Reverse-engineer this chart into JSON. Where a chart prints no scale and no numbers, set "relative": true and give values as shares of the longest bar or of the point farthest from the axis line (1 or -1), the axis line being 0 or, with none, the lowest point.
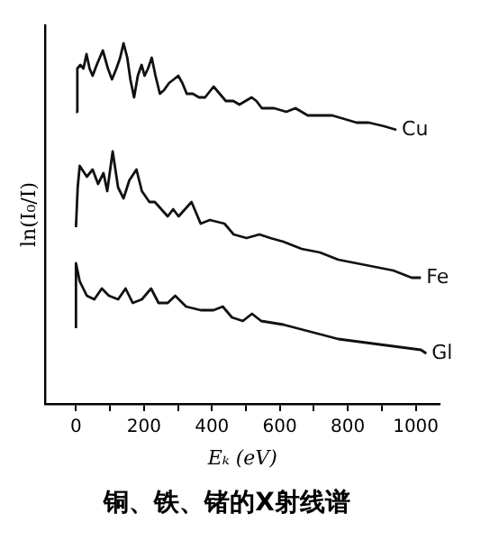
{
  "chart_data": {
    "type": "line",
    "title": "铜、铁、锗的X射线谱",
    "xlabel": "Eₖ (eV)",
    "ylabel": "ln(I₀/I)",
    "relative": true,
    "legend": false,
    "grid": false,
    "marker": "none",
    "xlim": [
      -90,
      1070
    ],
    "xticks": [
      0,
      {
        "value": 100,
        "label": null
      },
      200,
      {
        "value": 300,
        "label": null
      },
      400,
      {
        "value": 500,
        "label": null
      },
      600,
      {
        "value": 700,
        "label": null
      },
      800,
      {
        "value": 900,
        "label": null
      },
      1000
    ],
    "series": [
      {
        "name": "Cu",
        "color": "#111111",
        "x": [
          0,
          4,
          13,
          22,
          31,
          40,
          49,
          61,
          79,
          94,
          106,
          119,
          130,
          140,
          151,
          160,
          171,
          182,
          193,
          202,
          212,
          223,
          234,
          247,
          259,
          274,
          288,
          301,
          313,
          326,
          344,
          362,
          380,
          405,
          423,
          441,
          463,
          481,
          499,
          517,
          531,
          547,
          583,
          619,
          646,
          682,
          718,
          754,
          790,
          826,
          862,
          907,
          943
        ],
        "values": [
          0.81,
          0.93,
          0.94,
          0.93,
          0.97,
          0.93,
          0.91,
          0.94,
          0.98,
          0.93,
          0.9,
          0.93,
          0.96,
          1.0,
          0.96,
          0.9,
          0.85,
          0.91,
          0.94,
          0.91,
          0.93,
          0.96,
          0.91,
          0.86,
          0.87,
          0.89,
          0.9,
          0.91,
          0.89,
          0.86,
          0.86,
          0.85,
          0.85,
          0.88,
          0.86,
          0.84,
          0.84,
          0.83,
          0.84,
          0.85,
          0.84,
          0.82,
          0.82,
          0.81,
          0.82,
          0.8,
          0.8,
          0.8,
          0.79,
          0.78,
          0.78,
          0.77,
          0.76
        ]
      },
      {
        "name": "Fe",
        "color": "#111111",
        "x": [
          0,
          5,
          11,
          32,
          49,
          65,
          81,
          92,
          108,
          124,
          140,
          157,
          178,
          194,
          216,
          232,
          270,
          286,
          302,
          340,
          367,
          394,
          437,
          464,
          502,
          540,
          572,
          610,
          664,
          718,
          772,
          826,
          880,
          934,
          988,
          1015
        ],
        "values": [
          0.49,
          0.6,
          0.66,
          0.63,
          0.65,
          0.61,
          0.64,
          0.59,
          0.7,
          0.6,
          0.57,
          0.62,
          0.65,
          0.59,
          0.56,
          0.56,
          0.52,
          0.54,
          0.52,
          0.56,
          0.5,
          0.51,
          0.5,
          0.47,
          0.46,
          0.47,
          0.46,
          0.45,
          0.43,
          0.42,
          0.4,
          0.39,
          0.38,
          0.37,
          0.35,
          0.35
        ]
      },
      {
        "name": "Gl",
        "color": "#111111",
        "x": [
          0,
          0,
          11,
          32,
          54,
          76,
          97,
          124,
          146,
          167,
          194,
          221,
          243,
          270,
          292,
          324,
          367,
          405,
          432,
          459,
          491,
          518,
          545,
          610,
          691,
          772,
          853,
          934,
          1015,
          1031
        ],
        "values": [
          0.21,
          0.39,
          0.34,
          0.3,
          0.29,
          0.32,
          0.3,
          0.29,
          0.32,
          0.28,
          0.29,
          0.32,
          0.28,
          0.28,
          0.3,
          0.27,
          0.26,
          0.26,
          0.27,
          0.24,
          0.23,
          0.25,
          0.23,
          0.22,
          0.2,
          0.18,
          0.17,
          0.16,
          0.15,
          0.14
        ]
      }
    ]
  }
}
